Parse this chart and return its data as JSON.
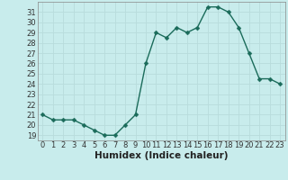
{
  "x": [
    0,
    1,
    2,
    3,
    4,
    5,
    6,
    7,
    8,
    9,
    10,
    11,
    12,
    13,
    14,
    15,
    16,
    17,
    18,
    19,
    20,
    21,
    22,
    23
  ],
  "y": [
    21,
    20.5,
    20.5,
    20.5,
    20,
    19.5,
    19,
    19,
    20,
    21,
    26,
    29,
    28.5,
    29.5,
    29,
    29.5,
    31.5,
    31.5,
    31,
    29.5,
    27,
    24.5,
    24.5,
    24
  ],
  "line_color": "#1a6b5a",
  "marker": "D",
  "marker_size": 2.5,
  "bg_color": "#c8ecec",
  "grid_color": "#b8dcdc",
  "xlabel": "Humidex (Indice chaleur)",
  "xlim": [
    -0.5,
    23.5
  ],
  "ylim": [
    18.5,
    32
  ],
  "yticks": [
    19,
    20,
    21,
    22,
    23,
    24,
    25,
    26,
    27,
    28,
    29,
    30,
    31
  ],
  "xticks": [
    0,
    1,
    2,
    3,
    4,
    5,
    6,
    7,
    8,
    9,
    10,
    11,
    12,
    13,
    14,
    15,
    16,
    17,
    18,
    19,
    20,
    21,
    22,
    23
  ],
  "label_fontsize": 7.5,
  "tick_fontsize": 6
}
